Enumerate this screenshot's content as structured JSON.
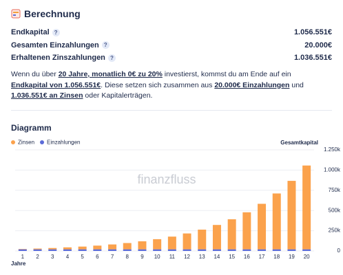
{
  "header": {
    "title": "Berechnung"
  },
  "summary": [
    {
      "label": "Endkapital",
      "value": "1.056.551€"
    },
    {
      "label": "Gesamten Einzahlungen",
      "value": "20.000€"
    },
    {
      "label": "Erhaltenen Zinszahlungen",
      "value": "1.036.551€"
    }
  ],
  "help": "?",
  "paragraph": [
    {
      "text": "Wenn du über ",
      "strong": false
    },
    {
      "text": "20 Jahre, monatlich 0€ zu 20%",
      "strong": true
    },
    {
      "text": " investierst, kommst du am Ende auf ein ",
      "strong": false
    },
    {
      "text": "Endkapital von 1.056.551€",
      "strong": true
    },
    {
      "text": ". Diese setzen sich zusammen aus ",
      "strong": false
    },
    {
      "text": "20.000€ Einzahlungen",
      "strong": true
    },
    {
      "text": " und ",
      "strong": false
    },
    {
      "text": "1.036.551€ an Zinsen",
      "strong": true
    },
    {
      "text": " oder Kapitalerträgen.",
      "strong": false
    }
  ],
  "chart_data": {
    "type": "stacked_bar",
    "title": "Diagramm",
    "watermark": "finanzfluss",
    "y_label": "Gesamtkapital",
    "x_label": "Jahre",
    "categories": [
      "1",
      "2",
      "3",
      "4",
      "5",
      "6",
      "7",
      "8",
      "9",
      "10",
      "11",
      "12",
      "13",
      "14",
      "15",
      "16",
      "17",
      "18",
      "19",
      "20"
    ],
    "series": [
      {
        "name": "Zinsen",
        "color": "#fba24c",
        "values": [
          4388,
          9740,
          16266,
          24224,
          33928,
          45760,
          60188,
          77782,
          99236,
          125400,
          157300,
          196200,
          243640,
          301480,
          372020,
          458040,
          562920,
          690820,
          846780,
          1036551
        ]
      },
      {
        "name": "Einzahlungen",
        "color": "#5b6bd8",
        "values": [
          20000,
          20000,
          20000,
          20000,
          20000,
          20000,
          20000,
          20000,
          20000,
          20000,
          20000,
          20000,
          20000,
          20000,
          20000,
          20000,
          20000,
          20000,
          20000,
          20000
        ]
      }
    ],
    "ylim": [
      0,
      1250000
    ],
    "yticks": [
      0,
      {
        "value": 250000,
        "label": "250k"
      },
      {
        "value": 500000,
        "label": "500k"
      },
      {
        "value": 750000,
        "label": "750k"
      },
      {
        "value": 1000000,
        "label": "1.000k"
      },
      {
        "value": 1250000,
        "label": "1.250k"
      }
    ],
    "grid": true
  }
}
